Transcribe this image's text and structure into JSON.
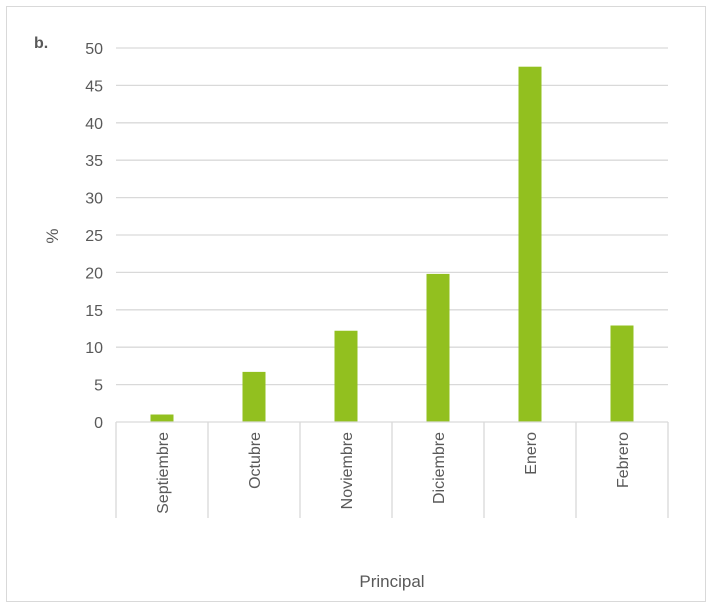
{
  "chart_data": {
    "type": "bar",
    "panel_label": "b.",
    "categories": [
      "Septiembre",
      "Octubre",
      "Noviembre",
      "Diciembre",
      "Enero",
      "Febrero"
    ],
    "values": [
      1.0,
      6.7,
      12.2,
      19.8,
      47.5,
      12.9
    ],
    "xlabel": "Principal",
    "ylabel": "%",
    "ylim": [
      0,
      50
    ],
    "yticks": [
      "0",
      "5",
      "10",
      "15",
      "20",
      "25",
      "30",
      "35",
      "40",
      "45",
      "50"
    ],
    "grid": true,
    "legend": "none",
    "bar_color": "#92c01f",
    "grid_color": "#d9d9d9",
    "text_color": "#595959"
  }
}
